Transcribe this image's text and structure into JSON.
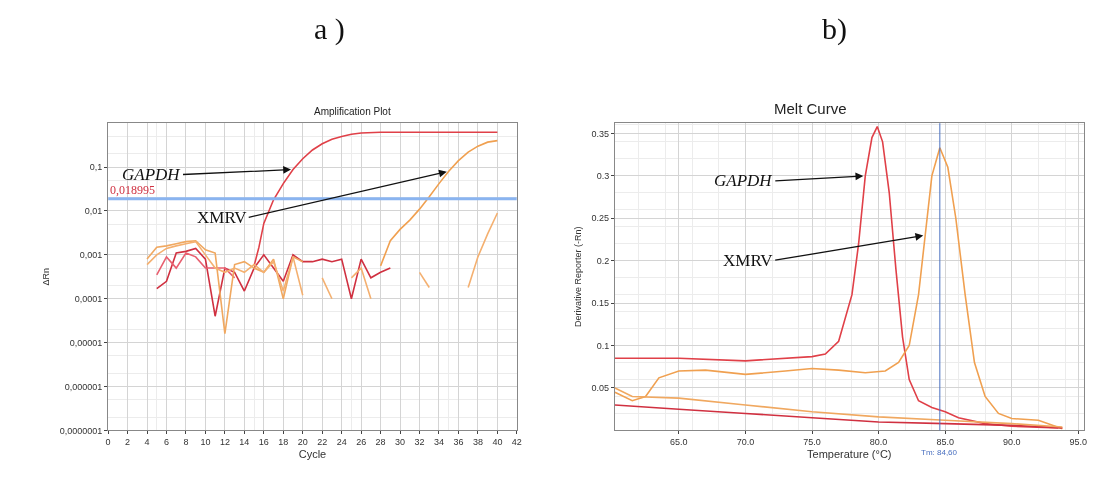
{
  "chart_data": [
    {
      "type": "line",
      "title": "Amplification Plot",
      "xlabel": "Cycle",
      "ylabel": "ΔRn",
      "log": "y",
      "grid": true,
      "marker": "none",
      "line_style": "solid",
      "xlim": [
        0,
        42
      ],
      "xticks": [
        0,
        2,
        4,
        6,
        8,
        10,
        12,
        14,
        16,
        18,
        20,
        22,
        24,
        26,
        28,
        30,
        32,
        34,
        36,
        38,
        40,
        42
      ],
      "ylim": [
        1e-07,
        1
      ],
      "yticks": [
        {
          "value": 1e-07,
          "label": "0,0000001"
        },
        {
          "value": 1e-06,
          "label": "0,000001"
        },
        {
          "value": 1e-05,
          "label": "0,00001"
        },
        {
          "value": 0.0001,
          "label": "0,0001"
        },
        {
          "value": 0.001,
          "label": "0,001"
        },
        {
          "value": 0.01,
          "label": "0,01"
        },
        {
          "value": 0.1,
          "label": "0,1"
        }
      ],
      "ref_lines": [
        {
          "axis": "y",
          "value": 0.018995,
          "label": "0,018995",
          "color": "#8ab4f0"
        }
      ],
      "annotations": [
        "a )",
        {
          "text": "GAPDH",
          "x": 19,
          "y": 0.088
        },
        {
          "text": "XMRV",
          "x": 35,
          "y": 0.08
        }
      ],
      "series": [
        {
          "color": "#e04048",
          "x": [
            15,
            15.5,
            16,
            17,
            18,
            19,
            20,
            21,
            22,
            23,
            24,
            25,
            26,
            28,
            30,
            35,
            40
          ],
          "values": [
            0.00056,
            0.0015,
            0.0052,
            0.018,
            0.042,
            0.088,
            0.155,
            0.245,
            0.34,
            0.43,
            0.5,
            0.56,
            0.6,
            0.62,
            0.62,
            0.62,
            0.62
          ]
        },
        {
          "color": "#f0a050",
          "x": [
            28,
            29,
            30,
            31,
            32,
            33,
            34,
            35,
            36,
            37,
            38,
            39,
            40
          ],
          "values": [
            0.00056,
            0.0021,
            0.0038,
            0.0062,
            0.011,
            0.021,
            0.042,
            0.08,
            0.14,
            0.22,
            0.3,
            0.37,
            0.4
          ]
        },
        {
          "color": "#d03040",
          "x": [
            5,
            6,
            7,
            8,
            9,
            10,
            11,
            12,
            13,
            14,
            15,
            16,
            17,
            18,
            19,
            20,
            21,
            22,
            23,
            24,
            25,
            26,
            27,
            28,
            29
          ],
          "values": [
            0.00017,
            0.00025,
            0.0011,
            0.0012,
            0.0014,
            0.0008,
            4e-05,
            0.0005,
            0.0004,
            0.00015,
            0.0005,
            0.001,
            0.0005,
            0.00025,
            0.001,
            0.0007,
            0.0007,
            0.0008,
            0.0007,
            0.0008,
            0.0001,
            0.0008,
            0.0003,
            0.0004,
            0.0005
          ]
        },
        {
          "color": "#e86070",
          "x": [
            5,
            6,
            7,
            8,
            9,
            10,
            11,
            12,
            13
          ],
          "values": [
            0.00035,
            0.0009,
            0.0005,
            0.0011,
            0.0009,
            0.0005,
            0.0005,
            0.0005,
            0.0003
          ]
        },
        {
          "color": "#f0a860",
          "x": [
            4,
            5,
            6,
            7,
            8,
            9,
            10,
            11,
            12,
            13,
            14,
            15,
            16,
            17,
            18,
            19,
            20
          ],
          "values": [
            0.0008,
            0.0015,
            0.0016,
            0.0018,
            0.002,
            0.0021,
            0.0013,
            0.0011,
            1.6e-05,
            0.0006,
            0.0007,
            0.0005,
            0.0004,
            0.0008,
            0.0001,
            0.0009,
            0.0007
          ]
        },
        {
          "color": "#f4b070",
          "x": [
            4,
            5,
            6,
            7,
            8,
            9,
            10,
            11,
            12,
            13,
            14,
            15,
            16,
            17,
            18,
            19,
            20,
            21,
            22,
            23,
            24,
            25,
            26,
            27,
            28,
            29,
            30,
            31,
            32,
            33,
            34,
            35,
            36,
            37,
            38,
            39,
            40
          ],
          "values": [
            0.0006,
            0.001,
            0.0014,
            0.0016,
            0.0018,
            0.002,
            0.001,
            0.0005,
            0.0004,
            0.0005,
            0.0004,
            0.0006,
            0.0004,
            0.0007,
            0.00015,
            0.0009,
            0.00012,
            null,
            0.0003,
            0.0001,
            null,
            0.0003,
            0.0005,
            0.0001,
            null,
            null,
            null,
            null,
            0.0004,
            0.00018,
            null,
            null,
            null,
            0.00018,
            0.0009,
            0.003,
            0.009
          ]
        }
      ]
    },
    {
      "type": "line",
      "title": "Melt Curve",
      "xlabel": "Temperature (°C)",
      "ylabel": "Derivative Reporter (-Rn)",
      "grid": true,
      "marker": "none",
      "line_style": "solid",
      "xlim": [
        60.2,
        95.4
      ],
      "xticks": [
        {
          "value": 65,
          "label": "65.0"
        },
        {
          "value": 70,
          "label": "70.0"
        },
        {
          "value": 75,
          "label": "75.0"
        },
        {
          "value": 80,
          "label": "80.0"
        },
        {
          "value": 85,
          "label": "85.0"
        },
        {
          "value": 90,
          "label": "90.0"
        },
        {
          "value": 95,
          "label": "95.0"
        }
      ],
      "ylim": [
        0,
        0.362
      ],
      "yticks": [
        0.05,
        0.1,
        0.15,
        0.2,
        0.25,
        0.3,
        0.35
      ],
      "ref_lines": [
        {
          "axis": "x",
          "value": 84.6,
          "label": "Tm: 84,60",
          "color": "#4a70c0"
        }
      ],
      "annotations": [
        "b)",
        {
          "text": "GAPDH",
          "x": 79,
          "y": 0.3
        },
        {
          "text": "XMRV",
          "x": 83.5,
          "y": 0.23
        }
      ],
      "series": [
        {
          "color": "#e04048",
          "x": [
            60.2,
            65,
            70,
            75,
            76,
            77,
            78,
            78.5,
            79,
            79.5,
            79.9,
            80.3,
            80.8,
            81.3,
            81.8,
            82.3,
            83,
            84,
            85,
            86,
            88,
            90,
            93.5
          ],
          "values": [
            0.085,
            0.085,
            0.082,
            0.087,
            0.09,
            0.105,
            0.16,
            0.22,
            0.3,
            0.345,
            0.358,
            0.34,
            0.28,
            0.19,
            0.11,
            0.06,
            0.035,
            0.027,
            0.022,
            0.015,
            0.008,
            0.005,
            0.003
          ]
        },
        {
          "color": "#f0a050",
          "x": [
            60.2,
            61.5,
            62.5,
            63.5,
            65,
            67,
            70,
            73,
            75,
            77,
            79,
            80.5,
            81.5,
            82.3,
            83,
            83.5,
            84,
            84.6,
            85.2,
            85.8,
            86.5,
            87.2,
            88,
            89,
            90,
            92,
            93.8
          ],
          "values": [
            0.045,
            0.035,
            0.04,
            0.062,
            0.07,
            0.071,
            0.066,
            0.07,
            0.073,
            0.071,
            0.068,
            0.07,
            0.08,
            0.1,
            0.16,
            0.23,
            0.3,
            0.333,
            0.31,
            0.25,
            0.16,
            0.08,
            0.04,
            0.02,
            0.014,
            0.012,
            0.002
          ]
        },
        {
          "color": "#d03040",
          "x": [
            60.2,
            65,
            70,
            75,
            80,
            85,
            90,
            93.8
          ],
          "values": [
            0.03,
            0.025,
            0.02,
            0.015,
            0.01,
            0.008,
            0.006,
            0.003
          ]
        },
        {
          "color": "#f0a860",
          "x": [
            60.2,
            61.5,
            65,
            70,
            75,
            80,
            85,
            90,
            93.8
          ],
          "values": [
            0.05,
            0.04,
            0.038,
            0.03,
            0.022,
            0.016,
            0.012,
            0.008,
            0.004
          ]
        }
      ]
    }
  ]
}
